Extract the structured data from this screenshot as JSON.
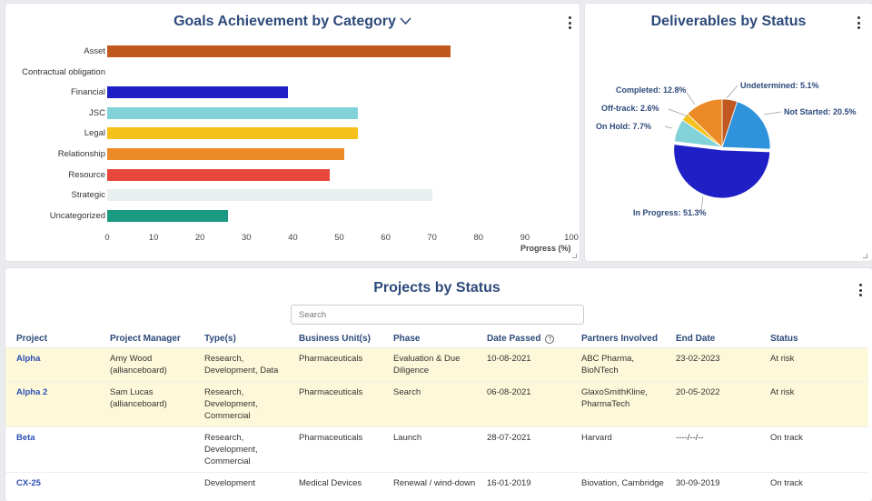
{
  "goals": {
    "title": "Goals Achievement by Category",
    "chevron_icon": "chevron-down-icon",
    "chart_data": {
      "type": "bar",
      "orientation": "horizontal",
      "categories": [
        "Asset",
        "Contractual obligation",
        "Financial",
        "JSC",
        "Legal",
        "Relationship",
        "Resource",
        "Strategic",
        "Uncategorized"
      ],
      "values": [
        74,
        0,
        39,
        54,
        54,
        51,
        48,
        70,
        26
      ],
      "colors": [
        "#c0581f",
        "#ffffff",
        "#1f1fc6",
        "#82d2d9",
        "#f6c11a",
        "#ec8a27",
        "#e8483c",
        "#e9eeee",
        "#1b9a82"
      ],
      "xticks": [
        "0",
        "10",
        "20",
        "30",
        "40",
        "50",
        "60",
        "70",
        "80",
        "90",
        "100"
      ],
      "xlabel": "Progress (%)",
      "xlim": [
        0,
        100
      ]
    }
  },
  "deliverables": {
    "title": "Deliverables by Status",
    "chart_data": {
      "type": "pie",
      "slices": [
        {
          "label": "Undetermined: 5.1%",
          "value": 5.1,
          "color": "#c0581f"
        },
        {
          "label": "Not Started: 20.5%",
          "value": 20.5,
          "color": "#2f93dc"
        },
        {
          "label": "In Progress: 51.3%",
          "value": 51.3,
          "color": "#1f1fc6"
        },
        {
          "label": "On Hold: 7.7%",
          "value": 7.7,
          "color": "#82d2d9"
        },
        {
          "label": "Off-track: 2.6%",
          "value": 2.6,
          "color": "#f6c11a"
        },
        {
          "label": "Completed: 12.8%",
          "value": 12.8,
          "color": "#ec8a27"
        }
      ]
    }
  },
  "projects": {
    "title": "Projects by Status",
    "search_placeholder": "Search",
    "info_icon": "info-icon",
    "columns": [
      "Project",
      "Project Manager",
      "Type(s)",
      "Business Unit(s)",
      "Phase",
      "Date Passed",
      "Partners Involved",
      "End Date",
      "Status"
    ],
    "rows": [
      {
        "project": "Alpha",
        "manager": "Amy Wood (allianceboard)",
        "types": "Research, Development, Data",
        "unit": "Pharmaceuticals",
        "phase": "Evaluation & Due Diligence",
        "date_passed": "10-08-2021",
        "partners": "ABC Pharma, BioNTech",
        "end_date": "23-02-2023",
        "status": "At risk"
      },
      {
        "project": "Alpha 2",
        "manager": "Sam Lucas (allianceboard)",
        "types": "Research, Development, Commercial",
        "unit": "Pharmaceuticals",
        "phase": "Search",
        "date_passed": "06-08-2021",
        "partners": "GlaxoSmithKline, PharmaTech",
        "end_date": "20-05-2022",
        "status": "At risk"
      },
      {
        "project": "Beta",
        "manager": "",
        "types": "Research, Development, Commercial",
        "unit": "Pharmaceuticals",
        "phase": "Launch",
        "date_passed": "28-07-2021",
        "partners": "Harvard",
        "end_date": "----/--/--",
        "status": "On track"
      },
      {
        "project": "CX-25",
        "manager": "",
        "types": "Development",
        "unit": "Medical Devices",
        "phase": "Renewal / wind-down",
        "date_passed": "16-01-2019",
        "partners": "Biovation, Cambridge",
        "end_date": "30-09-2019",
        "status": "On track"
      }
    ]
  }
}
